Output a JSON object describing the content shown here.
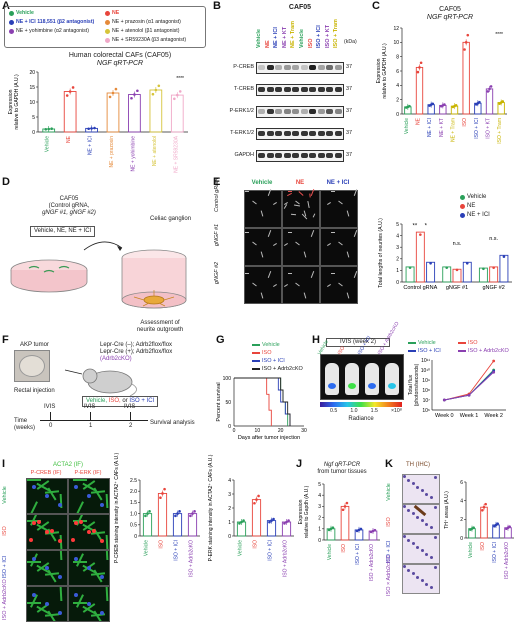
{
  "panels": {
    "A": {
      "label": "A",
      "legend": [
        {
          "text": "Vehicle",
          "color": "#2aa05a"
        },
        {
          "text": "NE",
          "color": "#e8453c"
        },
        {
          "text": "NE + ICI 118,551 (β2 antagonist)",
          "color": "#2a3fb7"
        },
        {
          "text": "NE + prazosin (α1 antagonist)",
          "color": "#e58a3a"
        },
        {
          "text": "NE + yohimbine (α2 antagonist)",
          "color": "#8a3fb0"
        },
        {
          "text": "NE + atenolol (β1 antagonist)",
          "color": "#d6c43a"
        },
        {
          "text": "NE + SR59230A (β3 antagonist)",
          "color": "#f0a8c8"
        }
      ],
      "title_line1": "Human colorectal CAFs (CAF05)",
      "title_line2": "NGF qRT-PCR",
      "ylabel_line1": "Expression",
      "ylabel_line2": "relative to GAPDH (A.U.)",
      "chart_data": {
        "type": "bar",
        "title": "Human colorectal CAFs (CAF05) NGF qRT-PCR",
        "ylabel": "Expression relative to GAPDH (A.U.)",
        "ylim": [
          0,
          20
        ],
        "yticks": [
          "0",
          "5",
          "10",
          "15",
          "20"
        ],
        "categories": [
          "Vehicle",
          "NE",
          "NE + ICI",
          "NE + prazosin",
          "NE + yohimbine",
          "NE + atenolol",
          "NE + SR59230A"
        ],
        "values": [
          1,
          13.5,
          1.2,
          13,
          12.5,
          14,
          12.3
        ],
        "colors": [
          "#2aa05a",
          "#e8453c",
          "#2a3fb7",
          "#e58a3a",
          "#8a3fb0",
          "#d6c43a",
          "#f0a8c8"
        ],
        "significance": "****"
      }
    },
    "B": {
      "label": "B",
      "title": "CAF05",
      "kda": "(kDa)",
      "lanes": [
        "Vehicle",
        "NE",
        "NE + ICI",
        "NE + KT",
        "NE + Tram",
        "Vehicle",
        "ISO",
        "ISO + ICI",
        "ISO + KT",
        "ISO + Tram"
      ],
      "lane_colors": [
        "#2aa05a",
        "#e8453c",
        "#2a3fb7",
        "#8a3fb0",
        "#c8b400",
        "#2aa05a",
        "#e8453c",
        "#2a3fb7",
        "#8a3fb0",
        "#c8b400"
      ],
      "rows": [
        {
          "name": "P-CREB",
          "kda": "37"
        },
        {
          "name": "T-CREB",
          "kda": "37"
        },
        {
          "name": "P-ERK1/2",
          "kda": "37"
        },
        {
          "name": "T-ERK1/2",
          "kda": "37"
        },
        {
          "name": "GAPDH",
          "kda": "37"
        }
      ]
    },
    "C": {
      "label": "C",
      "title_line1": "CAF05",
      "title_line2": "NGF qRT-PCR",
      "ylabel_line1": "Expression",
      "ylabel_line2": "relative to GAPDH (A.U.)",
      "chart_data": {
        "type": "line",
        "title": "CAF05 NGF qRT-PCR",
        "ylabel": "Expression relative to GAPDH (A.U.)",
        "ylim": [
          0,
          12
        ],
        "yticks": [
          "0",
          "2",
          "4",
          "6",
          "8",
          "10",
          "12"
        ],
        "categories": [
          "Vehicle",
          "NE",
          "NE + ICI",
          "NE + KT",
          "NE + Tram",
          "ISO",
          "ISO + ICI",
          "ISO + KT",
          "ISO + Tram"
        ],
        "values": [
          1,
          6.5,
          1.3,
          1.2,
          1.1,
          10,
          1.5,
          3.5,
          1.6
        ],
        "colors": [
          "#2aa05a",
          "#e8453c",
          "#2a3fb7",
          "#8a3fb0",
          "#c8b400",
          "#e8453c",
          "#2a3fb7",
          "#8a3fb0",
          "#c8b400"
        ],
        "significance": "****"
      }
    },
    "D": {
      "label": "D",
      "caf": "CAF05",
      "grna": "(Control gRNA,",
      "grna2": "gNGF #1, gNGF #2)",
      "treat": "Vehicle, NE, NE + ICI",
      "ganglion": "Celiac ganglion",
      "assess1": "Assessment of",
      "assess2": "neurite outgrowth"
    },
    "E": {
      "label": "E",
      "cols": [
        "Vehicle",
        "NE",
        "NE + ICI"
      ],
      "col_colors": [
        "#2aa05a",
        "#e8453c",
        "#2a3fb7"
      ],
      "rows": [
        "Control gRNA",
        "gNGF #1",
        "gNGF #2"
      ],
      "legend": [
        {
          "text": "Vehicle",
          "color": "#2aa05a"
        },
        {
          "text": "NE",
          "color": "#e8453c"
        },
        {
          "text": "NE + ICI",
          "color": "#2a3fb7"
        }
      ],
      "ylabel": "Total lengths of neurites (A.U.)",
      "ns": "n.s.",
      "sig": [
        "**",
        "*"
      ],
      "chart_data": {
        "type": "bar",
        "ylabel": "Total lengths of neurites (A.U.)",
        "ylim": [
          0,
          5
        ],
        "yticks": [
          "0",
          "1",
          "2",
          "3",
          "4",
          "5"
        ],
        "categories": [
          "Control gRNA",
          "gNGF #1",
          "gNGF #2"
        ],
        "series": [
          {
            "name": "Vehicle",
            "values": [
              1.3,
              1.3,
              1.2
            ]
          },
          {
            "name": "NE",
            "values": [
              4.3,
              1.1,
              1.3
            ]
          },
          {
            "name": "NE + ICI",
            "values": [
              1.7,
              1.7,
              2.3
            ]
          }
        ]
      }
    },
    "F": {
      "label": "F",
      "tumor": "AKP tumor",
      "geno1": "Lepr-Cre (–); Adrb2flox/flox",
      "geno2": "Lepr-Cre (+); Adrb2flox/flox",
      "geno3": "(Adrb2cKO)",
      "rectal": "Rectal injection",
      "treat_vehicle": "Vehicle,",
      "treat_iso": "ISO,",
      "treat_or": "or",
      "treat_ici": "ISO + ICI",
      "timeline": [
        "IVIS",
        "IVIS",
        "IVIS"
      ],
      "ticks": [
        "0",
        "1",
        "2"
      ],
      "time": "Time",
      "weeks": "(weeks)",
      "survival": "Survival analysis"
    },
    "G": {
      "label": "G",
      "legend": [
        {
          "text": "Vehicle",
          "color": "#2aa05a"
        },
        {
          "text": "ISO",
          "color": "#e8453c"
        },
        {
          "text": "ISO + ICI",
          "color": "#2a3fb7"
        },
        {
          "text": "ISO + Adrb2cKO",
          "color": "#222222"
        }
      ],
      "ylabel": "Percent survival",
      "xlabel": "Days after tumor injection",
      "chart_data": {
        "type": "line",
        "xlabel": "Days after tumor injection",
        "ylabel": "Percent survival",
        "ylim": [
          0,
          100
        ],
        "xlim": [
          0,
          30
        ],
        "yticks": [
          "0",
          "50",
          "100"
        ],
        "xticks": [
          "0",
          "10",
          "20",
          "30"
        ],
        "series": [
          {
            "name": "Vehicle",
            "x": [
              0,
              19,
              20,
              21,
              22,
              23
            ],
            "values": [
              100,
              100,
              75,
              50,
              25,
              0
            ]
          },
          {
            "name": "ISO",
            "x": [
              0,
              13,
              14,
              15,
              16
            ],
            "values": [
              100,
              100,
              66,
              33,
              0
            ]
          },
          {
            "name": "ISO + ICI",
            "x": [
              0,
              18,
              19,
              20,
              22,
              24
            ],
            "values": [
              100,
              100,
              75,
              50,
              25,
              0
            ]
          },
          {
            "name": "ISO + Adrb2cKO",
            "x": [
              0,
              18,
              20,
              21,
              23,
              24
            ],
            "values": [
              100,
              100,
              75,
              50,
              25,
              0
            ]
          }
        ]
      }
    },
    "H": {
      "label": "H",
      "ivis": "IVIS (week 2)",
      "mice": [
        "Vehicle",
        "ISO",
        "ISO + ICI",
        "ISO + Adrb2cKO"
      ],
      "radiance": "Radiance",
      "scale_ticks": [
        "0.5",
        "1.0",
        "1.5"
      ],
      "scale_unit": "×10⁸",
      "legend": [
        {
          "text": "Vehicle",
          "color": "#2aa05a"
        },
        {
          "text": "ISO",
          "color": "#e8453c"
        },
        {
          "text": "ISO + ICI",
          "color": "#2a3fb7"
        },
        {
          "text": "ISO + Adrb2cKO",
          "color": "#8a3fb0"
        }
      ],
      "ylabel_line1": "Total flux",
      "ylabel_line2": "(photons/seconds)",
      "chart_data": {
        "type": "line",
        "ylabel": "Total flux (photons/seconds)",
        "yscale": "log",
        "ylim": [
          1000000.0,
          100000000000.0
        ],
        "yticks": [
          "10⁶",
          "10⁷",
          "10⁸",
          "10⁹",
          "10¹⁰",
          "10¹¹"
        ],
        "categories": [
          "Week 0",
          "Week 1",
          "Week 2"
        ],
        "series": [
          {
            "name": "Vehicle",
            "values": [
              10000000.0,
              30000000.0,
              10000000000.0
            ]
          },
          {
            "name": "ISO",
            "values": [
              10000000.0,
              40000000.0,
              80000000000.0
            ]
          },
          {
            "name": "ISO + ICI",
            "values": [
              10000000.0,
              30000000.0,
              8000000000.0
            ]
          },
          {
            "name": "ISO + Adrb2cKO",
            "values": [
              10000000.0,
              30000000.0,
              6000000000.0
            ]
          }
        ]
      }
    },
    "I": {
      "label": "I",
      "top": "ACTA2 (IF)",
      "cols": [
        "P-CREB (IF)",
        "P-ERK (IF)"
      ],
      "rows": [
        "Vehicle",
        "ISO",
        "ISO + ICI",
        "ISO + Adrb2cKO"
      ],
      "row_colors": [
        "#2aa05a",
        "#e8453c",
        "#2a3fb7",
        "#8a3fb0"
      ],
      "chart1_ylabel": "P-CREB staining intensity in ACTA2⁺ CAFs (A.U.)",
      "chart2_ylabel": "P-ERK staining intensity in ACTA2⁺ CAFs (A.U.)",
      "chart_data": [
        {
          "type": "bar",
          "ylabel": "P-CREB staining intensity in ACTA2⁺ CAFs (A.U.)",
          "ylim": [
            0,
            2.5
          ],
          "yticks": [
            "0",
            "0.5",
            "1.0",
            "1.5",
            "2.0",
            "2.5"
          ],
          "categories": [
            "Vehicle",
            "ISO",
            "ISO + ICI",
            "ISO + Adrb2cKO"
          ],
          "values": [
            1.0,
            1.9,
            1.0,
            1.0
          ]
        },
        {
          "type": "bar",
          "ylabel": "P-ERK staining intensity in ACTA2⁺ CAFs (A.U.)",
          "ylim": [
            0,
            4
          ],
          "yticks": [
            "0",
            "1",
            "2",
            "3",
            "4"
          ],
          "categories": [
            "Vehicle",
            "ISO",
            "ISO + ICI",
            "ISO + Adrb2cKO"
          ],
          "values": [
            1.0,
            2.6,
            1.1,
            1.0
          ]
        }
      ]
    },
    "J": {
      "label": "J",
      "title1": "Ngf qRT-PCR",
      "title2": "from tumor tissues",
      "ylabel_line1": "Expression",
      "ylabel_line2": "relative to Gapdh (A.U.)",
      "chart_data": {
        "type": "bar",
        "title": "Ngf qRT-PCR from tumor tissues",
        "ylabel": "Expression relative to Gapdh (A.U.)",
        "ylim": [
          0,
          5
        ],
        "yticks": [
          "0",
          "1",
          "2",
          "3",
          "4",
          "5"
        ],
        "categories": [
          "Vehicle",
          "ISO",
          "ISO + ICI",
          "ISO + Adrb2cKO"
        ],
        "values": [
          1.0,
          3.0,
          0.9,
          0.8
        ]
      }
    },
    "K": {
      "label": "K",
      "title": "TH (IHC)",
      "rows": [
        "Vehicle",
        "ISO",
        "ISO + ICI",
        "ISO × Adrb2cKO"
      ],
      "row_colors": [
        "#2aa05a",
        "#e8453c",
        "#2a3fb7",
        "#8a3fb0"
      ],
      "ylabel": "TH⁺ areas (A.U.)",
      "chart_data": {
        "type": "bar",
        "ylabel": "TH⁺ areas (A.U.)",
        "ylim": [
          0,
          6
        ],
        "yticks": [
          "0",
          "2",
          "4",
          "6"
        ],
        "categories": [
          "Vehicle",
          "ISO",
          "ISO + ICI",
          "ISO + Adrb2cKO"
        ],
        "values": [
          1.0,
          3.3,
          1.4,
          1.1
        ]
      }
    }
  }
}
